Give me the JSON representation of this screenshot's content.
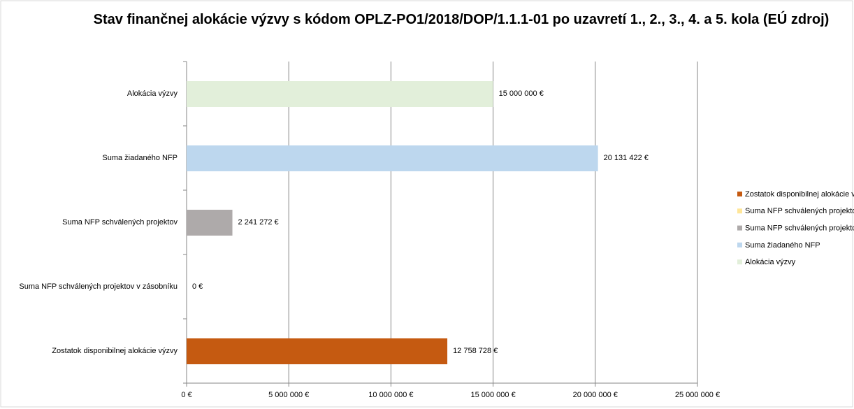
{
  "chart_data": {
    "type": "bar",
    "orientation": "horizontal",
    "title": "Stav finančnej alokácie výzvy s kódom OPLZ-PO1/2018/DOP/1.1.1-01 po uzavretí 1., 2., 3., 4. a 5. kola (EÚ zdroj)",
    "categories": [
      "Alokácia výzvy",
      "Suma žiadaného NFP",
      "Suma NFP schválených projektov",
      "Suma NFP schválených projektov v zásobníku",
      "Zostatok disponibilnej alokácie výzvy"
    ],
    "values": [
      15000000,
      20131422,
      2241272,
      0,
      12758728
    ],
    "value_labels": [
      "15 000 000 €",
      "20 131 422 €",
      "2 241 272 €",
      "0 €",
      "12 758 728 €"
    ],
    "colors": [
      "#e2efda",
      "#bdd7ee",
      "#aeaaaa",
      "#ffe699",
      "#c55a11"
    ],
    "xlim": [
      0,
      25000000
    ],
    "xticks": [
      {
        "value": 0,
        "label": "0 €"
      },
      {
        "value": 5000000,
        "label": "5 000 000 €"
      },
      {
        "value": 10000000,
        "label": "10 000 000 €"
      },
      {
        "value": 15000000,
        "label": "15 000 000 €"
      },
      {
        "value": 20000000,
        "label": "20 000 000 €"
      },
      {
        "value": 25000000,
        "label": "25 000 000 €"
      }
    ],
    "grid": true,
    "legend": "right"
  }
}
